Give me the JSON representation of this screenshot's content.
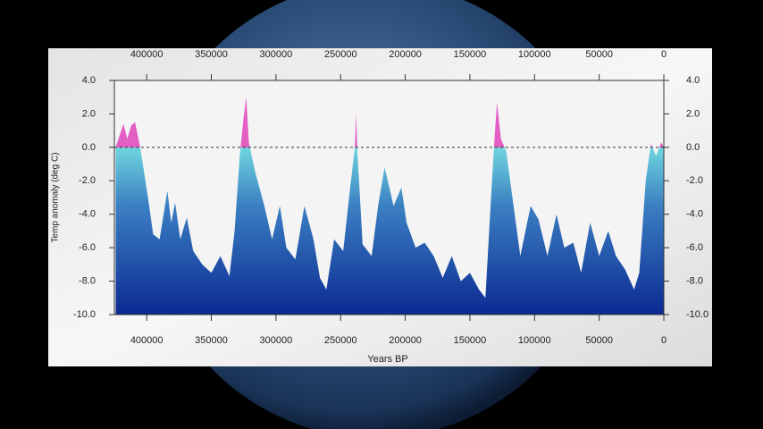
{
  "chart_data": {
    "type": "area",
    "x_label": "Years BP",
    "y_label": "Temp anomaly (deg C)",
    "x": [
      424000,
      418000,
      415000,
      412000,
      409000,
      405000,
      402000,
      399000,
      395000,
      390000,
      384000,
      381000,
      378000,
      374000,
      369000,
      364000,
      357000,
      350000,
      343000,
      336000,
      332000,
      328000,
      325000,
      323000,
      321000,
      316000,
      309000,
      303000,
      297000,
      292000,
      285000,
      278000,
      271000,
      266000,
      261000,
      255000,
      248000,
      242000,
      239000,
      238000,
      237000,
      233000,
      226000,
      221000,
      216000,
      209000,
      203000,
      199000,
      192000,
      185000,
      178000,
      171000,
      164000,
      157000,
      150000,
      143000,
      138000,
      134000,
      131000,
      129000,
      126000,
      122000,
      118000,
      111000,
      103000,
      97000,
      90000,
      83000,
      77000,
      70000,
      64000,
      57000,
      50000,
      43000,
      37000,
      30000,
      23000,
      19000,
      14000,
      10000,
      6000,
      2000,
      0
    ],
    "values": [
      0.0,
      1.4,
      0.5,
      1.3,
      1.5,
      0.0,
      -1.5,
      -3.0,
      -5.2,
      -5.5,
      -2.6,
      -4.5,
      -3.3,
      -5.5,
      -4.2,
      -6.2,
      -7.0,
      -7.5,
      -6.5,
      -7.7,
      -5.0,
      -0.5,
      1.8,
      3.0,
      0.3,
      -1.5,
      -3.5,
      -5.5,
      -3.5,
      -6.0,
      -6.7,
      -3.5,
      -5.5,
      -7.8,
      -8.5,
      -5.5,
      -6.2,
      -2.0,
      0.0,
      2.0,
      -0.3,
      -5.8,
      -6.5,
      -3.5,
      -1.2,
      -3.5,
      -2.4,
      -4.5,
      -6.0,
      -5.7,
      -6.5,
      -7.8,
      -6.5,
      -8.0,
      -7.5,
      -8.5,
      -9.0,
      -3.5,
      0.5,
      2.7,
      0.5,
      -0.2,
      -2.5,
      -6.5,
      -3.5,
      -4.3,
      -6.5,
      -4.0,
      -6.0,
      -5.7,
      -7.5,
      -4.5,
      -6.5,
      -5.0,
      -6.5,
      -7.3,
      -8.5,
      -7.5,
      -2.0,
      0.2,
      -0.5,
      0.3,
      0.0
    ],
    "xlim": [
      425000,
      0
    ],
    "xticks": [
      400000,
      350000,
      300000,
      250000,
      200000,
      150000,
      100000,
      50000,
      0
    ],
    "ylim": [
      -10,
      4
    ],
    "yticks": [
      {
        "value": -10,
        "label": "-10.0"
      },
      {
        "value": -8,
        "label": "-8.0"
      },
      {
        "value": -6,
        "label": "-6.0"
      },
      {
        "value": -4,
        "label": "-4.0"
      },
      {
        "value": -2,
        "label": "-2.0"
      },
      {
        "value": 0,
        "label": "0.0"
      },
      {
        "value": 2,
        "label": "2.0"
      },
      {
        "value": 4,
        "label": "4.0"
      }
    ],
    "reference_line": 0,
    "colors": {
      "above": "#e35fc4",
      "zero": "#6fd6df",
      "mid": "#3b7fc2",
      "bottom": "#0b2a92"
    }
  }
}
